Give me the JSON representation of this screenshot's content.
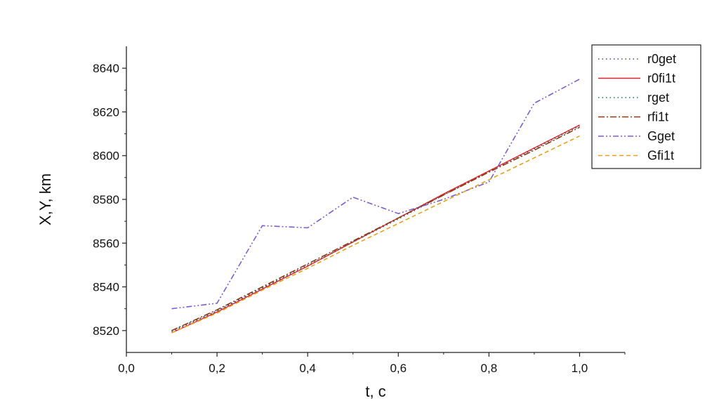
{
  "chart_data": {
    "type": "line",
    "title": "",
    "xlabel": "t, c",
    "ylabel": "X,Y, km",
    "xlim": [
      0.0,
      1.1
    ],
    "ylim": [
      8510,
      8650
    ],
    "x_ticks": [
      "0,0",
      "0,2",
      "0,4",
      "0,6",
      "0,8",
      "1,0"
    ],
    "x_tick_values": [
      0.0,
      0.2,
      0.4,
      0.6,
      0.8,
      1.0
    ],
    "y_ticks": [
      "8520",
      "8540",
      "8560",
      "8580",
      "8600",
      "8620",
      "8640"
    ],
    "y_tick_values": [
      8520,
      8540,
      8560,
      8580,
      8600,
      8620,
      8640
    ],
    "grid": false,
    "legend_position": "top-right",
    "x": [
      0.1,
      0.2,
      0.3,
      0.4,
      0.5,
      0.6,
      0.7,
      0.8,
      0.9,
      1.0
    ],
    "series": [
      {
        "name": "r0get",
        "color": "#3b3fa6",
        "dash": "dotted",
        "values": [
          8519.5,
          8529.0,
          8539.5,
          8549.5,
          8560.5,
          8571.5,
          8582.5,
          8593.0,
          8603.5,
          8614.0
        ]
      },
      {
        "name": "r0fi1t",
        "color": "#e8202a",
        "dash": "solid",
        "values": [
          8519.0,
          8528.5,
          8539.0,
          8549.5,
          8560.5,
          8571.5,
          8582.5,
          8593.0,
          8603.5,
          8614.0
        ]
      },
      {
        "name": "rget",
        "color": "#1f6f6f",
        "dash": "dotted",
        "values": [
          8520.0,
          8529.0,
          8539.5,
          8550.0,
          8560.5,
          8571.0,
          8582.0,
          8592.5,
          8603.0,
          8613.5
        ]
      },
      {
        "name": "rfi1t",
        "color": "#8a3b12",
        "dash": "dashdot",
        "values": [
          8520.0,
          8529.5,
          8540.0,
          8550.5,
          8561.0,
          8571.5,
          8582.0,
          8592.5,
          8602.5,
          8613.0
        ]
      },
      {
        "name": "Gget",
        "color": "#7b5fd0",
        "dash": "dashdotdot",
        "values": [
          8530.0,
          8532.5,
          8568.0,
          8567.0,
          8581.0,
          8573.5,
          8580.0,
          8588.0,
          8624.0,
          8635.0
        ]
      },
      {
        "name": "Gfi1t",
        "color": "#e6a21c",
        "dash": "dashed",
        "values": [
          8519.0,
          8528.0,
          8538.5,
          8548.5,
          8559.0,
          8569.0,
          8579.0,
          8589.0,
          8599.0,
          8609.0
        ]
      }
    ]
  }
}
